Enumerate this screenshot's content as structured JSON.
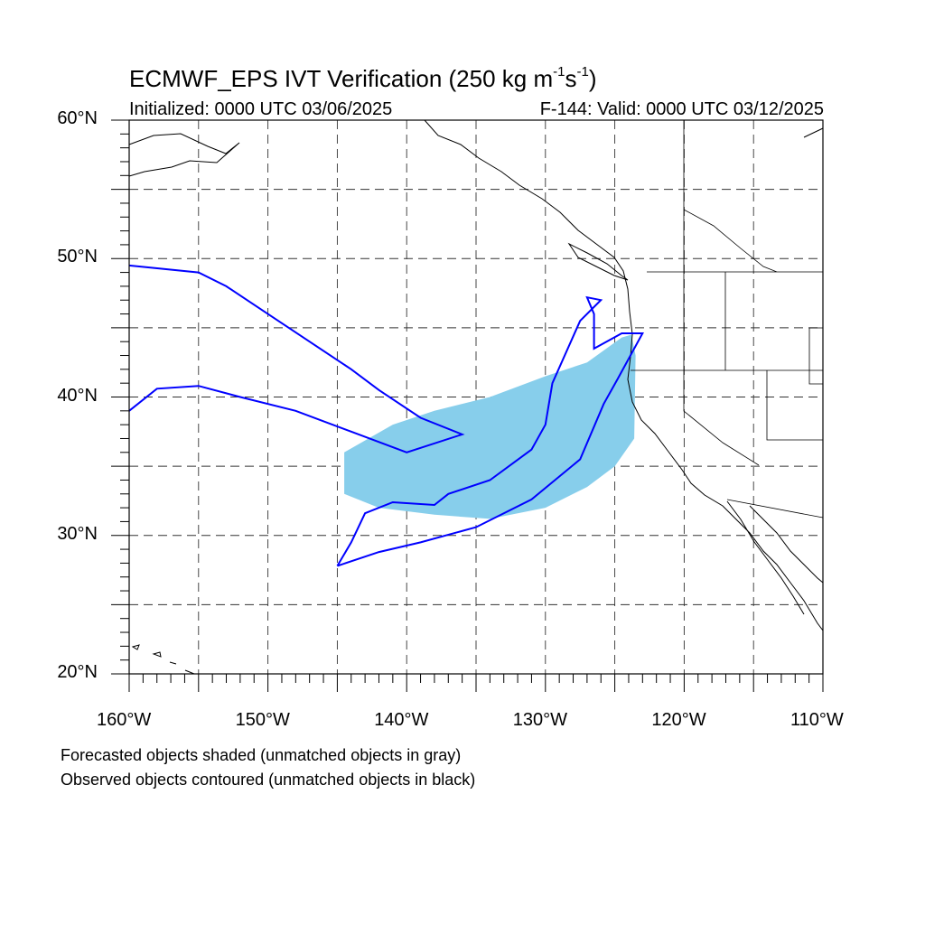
{
  "header": {
    "title_main": "ECMWF_EPS IVT Verification (250 kg m",
    "title_sup1": "-1",
    "title_mid": "s",
    "title_sup2": "-1",
    "title_end": ")",
    "initialized": "Initialized: 0000 UTC 03/06/2025",
    "valid": "F-144: Valid: 0000 UTC 03/12/2025"
  },
  "axes": {
    "lat_labels": [
      "60°N",
      "50°N",
      "40°N",
      "30°N",
      "20°N"
    ],
    "lat_values": [
      60,
      50,
      40,
      30,
      20
    ],
    "lon_labels": [
      "160°W",
      "150°W",
      "140°W",
      "130°W",
      "120°W",
      "110°W"
    ],
    "lon_values": [
      -160,
      -150,
      -140,
      -130,
      -120,
      -110
    ],
    "lon_range": [
      -160,
      -110
    ],
    "lat_range": [
      20,
      60
    ],
    "grid": "dashed every 5 degrees"
  },
  "legend": {
    "line1": "Forecasted objects shaded (unmatched objects in gray)",
    "line2": "Observed objects contoured (unmatched objects in black)"
  },
  "colors": {
    "forecast_fill": "#87ceeb",
    "observed_contour": "#0000ff",
    "coastline": "#000000",
    "grid": "#333333"
  },
  "map_data": {
    "forecast_object": [
      [
        -144.5,
        36
      ],
      [
        -141,
        38
      ],
      [
        -138,
        39
      ],
      [
        -134,
        40
      ],
      [
        -130,
        41.5
      ],
      [
        -127,
        42.5
      ],
      [
        -124.5,
        44.3
      ],
      [
        -123.8,
        44.5
      ],
      [
        -123.5,
        43
      ],
      [
        -123.6,
        37
      ],
      [
        -125,
        35
      ],
      [
        -127,
        33.5
      ],
      [
        -130,
        32
      ],
      [
        -134,
        31.2
      ],
      [
        -138,
        31.5
      ],
      [
        -142,
        32
      ],
      [
        -144.5,
        33
      ]
    ],
    "observed_object_north": [
      [
        -160,
        49.5
      ],
      [
        -155,
        49
      ],
      [
        -153,
        48
      ],
      [
        -150,
        46
      ],
      [
        -147,
        44
      ],
      [
        -144,
        42
      ],
      [
        -142,
        40.5
      ],
      [
        -139,
        38.5
      ],
      [
        -136,
        37.3
      ],
      [
        -140,
        36
      ],
      [
        -144,
        37.5
      ],
      [
        -148,
        39
      ],
      [
        -152,
        40
      ],
      [
        -155,
        40.8
      ],
      [
        -158,
        40.6
      ],
      [
        -160,
        39
      ]
    ],
    "observed_object_south": [
      [
        -145,
        27.8
      ],
      [
        -142,
        28.8
      ],
      [
        -139,
        29.5
      ],
      [
        -135,
        30.6
      ],
      [
        -131,
        32.6
      ],
      [
        -127.5,
        35.5
      ],
      [
        -125.8,
        39.5
      ],
      [
        -124.8,
        41.3
      ],
      [
        -123,
        44.6
      ],
      [
        -124.5,
        44.6
      ],
      [
        -126.5,
        43.5
      ],
      [
        -126.5,
        46
      ],
      [
        -127,
        47.2
      ],
      [
        -126,
        47
      ],
      [
        -127.5,
        45.5
      ],
      [
        -129.5,
        41
      ],
      [
        -130,
        38
      ],
      [
        -131,
        36.2
      ],
      [
        -134,
        34
      ],
      [
        -137,
        33
      ],
      [
        -138,
        32.2
      ],
      [
        -141,
        32.4
      ],
      [
        -143,
        31.6
      ],
      [
        -144,
        29.5
      ]
    ]
  }
}
